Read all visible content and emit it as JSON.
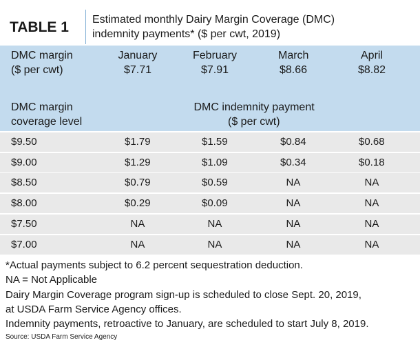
{
  "header": {
    "label": "TABLE 1",
    "title": [
      "Estimated monthly Dairy Margin Coverage (DMC)",
      "indemnity payments* ($ per cwt, 2019)"
    ]
  },
  "table": {
    "margin_header": [
      "DMC margin",
      "($ per cwt)"
    ],
    "months": [
      {
        "name": "January",
        "margin": "$7.71"
      },
      {
        "name": "February",
        "margin": "$7.91"
      },
      {
        "name": "March",
        "margin": "$8.66"
      },
      {
        "name": "April",
        "margin": "$8.82"
      }
    ],
    "coverage_header": [
      "DMC margin",
      "coverage level"
    ],
    "payment_header": [
      "DMC indemnity payment",
      "($ per cwt)"
    ],
    "rows": [
      [
        "$9.50",
        "$1.79",
        "$1.59",
        "$0.84",
        "$0.68"
      ],
      [
        "$9.00",
        "$1.29",
        "$1.09",
        "$0.34",
        "$0.18"
      ],
      [
        "$8.50",
        "$0.79",
        "$0.59",
        "NA",
        "NA"
      ],
      [
        "$8.00",
        "$0.29",
        "$0.09",
        "NA",
        "NA"
      ],
      [
        "$7.50",
        "NA",
        "NA",
        "NA",
        "NA"
      ],
      [
        "$7.00",
        "NA",
        "NA",
        "NA",
        "NA"
      ]
    ]
  },
  "footnotes": [
    "*Actual payments subject to 6.2 percent sequestration deduction.",
    "NA = Not Applicable",
    "Dairy Margin Coverage program sign-up is scheduled to close Sept. 20, 2019,",
    "at USDA Farm Service Agency offices.",
    "Indemnity payments, retroactive to January, are scheduled to start July 8, 2019."
  ],
  "source": "Source: USDA Farm Service Agency"
}
